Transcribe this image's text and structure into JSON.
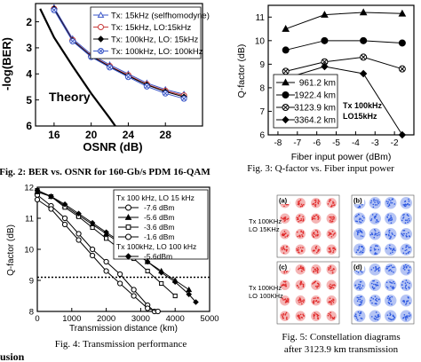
{
  "chart_data": [
    {
      "type": "line",
      "panel": "fig2",
      "caption": "Fig. 2: BER vs. OSNR for 160-Gb/s PDM 16-QAM",
      "xlabel": "OSNR (dB)",
      "ylabel": "-log(BER)",
      "xlim": [
        14,
        32
      ],
      "ylim": [
        1.3,
        6
      ],
      "xticks": [
        "16",
        "20",
        "24",
        "28"
      ],
      "yticks": [
        "2",
        "3",
        "4",
        "5",
        "6"
      ],
      "legend_position": "top-right",
      "theory_label": "Theory",
      "theory": {
        "x": [
          14.5,
          16.0,
          18.0,
          20.0,
          22.0,
          22.6
        ],
        "y": [
          1.5,
          2.6,
          3.7,
          4.75,
          5.7,
          6.0
        ]
      },
      "series": [
        {
          "name": "Tx: 15kHz (selfhomodyne)",
          "marker": "triangle-open",
          "color": "#3a56c8",
          "x": [
            16,
            18,
            20,
            22,
            24,
            26,
            28,
            30
          ],
          "y": [
            1.45,
            2.65,
            3.25,
            3.65,
            4.0,
            4.35,
            4.6,
            4.78
          ]
        },
        {
          "name": "Tx: 15kHz, LO:15kHz",
          "marker": "circle-open",
          "color": "#c83a3a",
          "x": [
            16,
            18,
            20,
            22,
            24,
            26,
            28,
            30
          ],
          "y": [
            1.5,
            2.7,
            3.3,
            3.7,
            4.05,
            4.4,
            4.65,
            4.83
          ]
        },
        {
          "name": "Tx: 100kHz, LO: 15kHz",
          "marker": "diamond",
          "color": "#000000",
          "x": [
            16,
            18,
            20,
            22,
            24,
            26,
            28,
            30
          ],
          "y": [
            1.5,
            2.72,
            3.32,
            3.72,
            4.08,
            4.42,
            4.68,
            4.88
          ]
        },
        {
          "name": "Tx: 100kHz, LO: 100kHz",
          "marker": "circle-cross",
          "color": "#3a56c8",
          "x": [
            16,
            18,
            20,
            22,
            24,
            26,
            28,
            30
          ],
          "y": [
            1.55,
            2.75,
            3.35,
            3.75,
            4.12,
            4.48,
            4.75,
            4.95
          ]
        }
      ]
    },
    {
      "type": "line",
      "panel": "fig3",
      "caption": "Fig. 3: Q-factor vs. Fiber input power",
      "xlabel": "Fiber input power (dBm)",
      "ylabel": "Q-factor (dB)",
      "xlim": [
        -8.5,
        -1
      ],
      "ylim": [
        6,
        11.5
      ],
      "xticks": [
        "-8",
        "-7",
        "-6",
        "-5",
        "-4",
        "-3",
        "-2"
      ],
      "yticks": [
        "6",
        "7",
        "8",
        "9",
        "10",
        "11"
      ],
      "legend_position": "bottom-left",
      "annotation": [
        "Tx 100kHz",
        "LO15kHz"
      ],
      "series": [
        {
          "name": "961.2 km",
          "marker": "triangle",
          "x": [
            -7.6,
            -5.6,
            -3.6,
            -1.6
          ],
          "y": [
            10.5,
            11.1,
            11.2,
            11.15
          ]
        },
        {
          "name": "1922.4 km",
          "marker": "circle",
          "x": [
            -7.6,
            -5.6,
            -3.6,
            -1.6
          ],
          "y": [
            9.6,
            10.0,
            10.0,
            9.9
          ]
        },
        {
          "name": "3123.9 km",
          "marker": "circle-cross",
          "x": [
            -7.6,
            -5.6,
            -3.6,
            -1.6
          ],
          "y": [
            8.7,
            9.1,
            9.3,
            8.8
          ]
        },
        {
          "name": "3364.2 km",
          "marker": "diamond",
          "x": [
            -7.6,
            -5.6,
            -3.6,
            -1.6
          ],
          "y": [
            8.4,
            8.9,
            8.6,
            6.0
          ]
        }
      ]
    },
    {
      "type": "line",
      "panel": "fig4",
      "caption": "Fig. 4: Transmission performance",
      "xlabel": "Transmission distance (km)",
      "ylabel": "Q-factor (dB)",
      "xlim": [
        0,
        5000
      ],
      "ylim": [
        8,
        12
      ],
      "xticks": [
        "0",
        "1000",
        "2000",
        "3000",
        "4000",
        "5000"
      ],
      "yticks": [
        "8",
        "9",
        "10",
        "11",
        "12"
      ],
      "threshold": 9.1,
      "legend_position": "top-right",
      "legend_headers": [
        "Tx 100 kHz, LO 15 kHz",
        "Tx 100kHz, LO 100 kHz"
      ],
      "series": [
        {
          "name": "-7.6 dBm",
          "marker": "circle-open",
          "group": 0,
          "x": [
            0,
            400,
            800,
            1200,
            1600,
            2000,
            2400,
            2800,
            3200,
            3400
          ],
          "y": [
            11.75,
            11.4,
            11.0,
            10.5,
            10.0,
            9.6,
            9.2,
            8.7,
            8.2,
            8.0
          ]
        },
        {
          "name": "-5.6 dBm",
          "marker": "triangle",
          "group": 0,
          "x": [
            0,
            400,
            800,
            1200,
            1600,
            2000,
            2400,
            2800,
            3200,
            3600,
            4000,
            4400
          ],
          "y": [
            11.85,
            11.7,
            11.4,
            11.1,
            10.8,
            10.5,
            10.2,
            9.9,
            9.6,
            9.3,
            9.0,
            8.7
          ]
        },
        {
          "name": "-3.6 dBm",
          "marker": "square-open",
          "group": 0,
          "x": [
            0,
            400,
            800,
            1200,
            1600,
            2000,
            2400,
            2800,
            3200,
            3600,
            4000
          ],
          "y": [
            11.9,
            11.7,
            11.35,
            11.05,
            10.7,
            10.35,
            10.0,
            9.7,
            9.3,
            8.9,
            8.5
          ]
        },
        {
          "name": "-1.6 dBm",
          "marker": "circle-open",
          "group": 0,
          "x": [
            0,
            400,
            800,
            1200,
            1600,
            2000,
            2400,
            2800,
            3200,
            3500
          ],
          "y": [
            11.6,
            11.3,
            10.8,
            10.3,
            9.8,
            9.3,
            8.9,
            8.5,
            8.1,
            8.0
          ]
        },
        {
          "name": "-5.6dBm",
          "marker": "diamond",
          "group": 1,
          "x": [
            0,
            400,
            800,
            1200,
            1600,
            2000,
            2400,
            2800,
            3200,
            3600,
            4000,
            4400,
            4600
          ],
          "y": [
            11.9,
            11.7,
            11.45,
            11.15,
            10.85,
            10.55,
            10.25,
            9.95,
            9.6,
            9.25,
            8.95,
            8.55,
            8.3
          ]
        }
      ]
    },
    {
      "type": "scatter",
      "panel": "fig5",
      "caption": [
        "Fig. 5: Constellation diagrams",
        "after 3123.9 km transmission"
      ],
      "row_labels": [
        [
          "Tx 100KHz",
          "LO  15KHz"
        ],
        [
          "Tx 100KHz",
          "LO 100KHz"
        ]
      ],
      "panels": [
        {
          "label": "(a)",
          "color": "#e02a2a"
        },
        {
          "label": "(b)",
          "color": "#2a56e0"
        },
        {
          "label": "(c)",
          "color": "#e02a2a"
        },
        {
          "label": "(d)",
          "color": "#2a56e0"
        }
      ],
      "grid": [
        4,
        4
      ]
    }
  ],
  "footer_text": "usion"
}
